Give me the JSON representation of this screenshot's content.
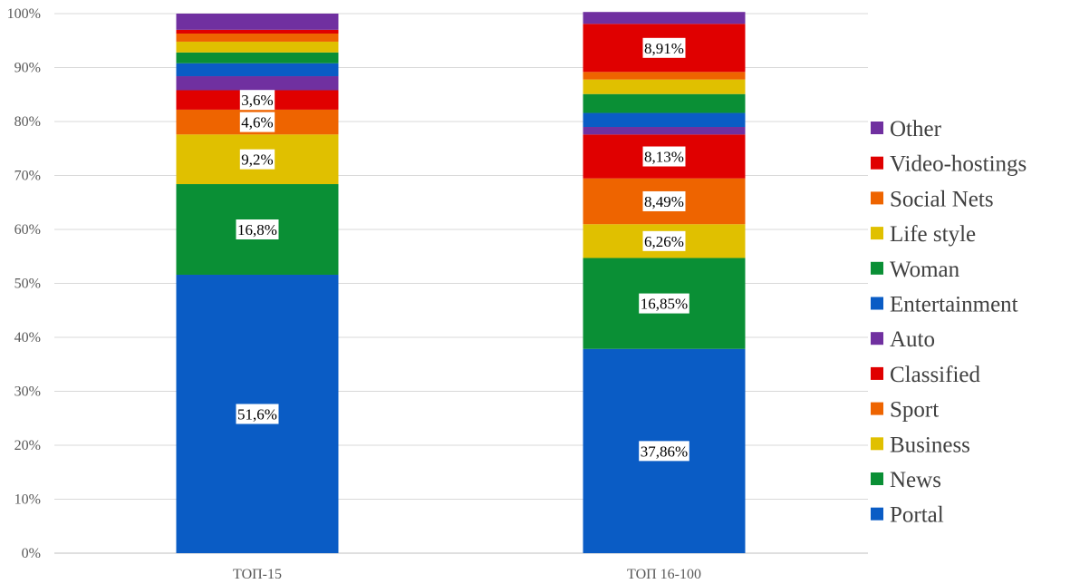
{
  "chart_data": {
    "type": "bar",
    "stacked": true,
    "percent_stacked": true,
    "categories": [
      "ТОП-15",
      "ТОП 16-100"
    ],
    "ylim": [
      0,
      100
    ],
    "yticks": [
      "0%",
      "10%",
      "20%",
      "30%",
      "40%",
      "50%",
      "60%",
      "70%",
      "80%",
      "90%",
      "100%"
    ],
    "grid": true,
    "legend_position": "right",
    "series": [
      {
        "name": "Portal",
        "color": "#0a5cc5",
        "values": [
          51.6,
          37.86
        ],
        "labels": [
          "51,6%",
          "37,86%"
        ]
      },
      {
        "name": "News",
        "color": "#0a8f35",
        "values": [
          16.8,
          16.85
        ],
        "labels": [
          "16,8%",
          "16,85%"
        ]
      },
      {
        "name": "Business",
        "color": "#e0c000",
        "values": [
          9.2,
          6.26
        ],
        "labels": [
          "9,2%",
          "6,26%"
        ]
      },
      {
        "name": "Sport",
        "color": "#ee6400",
        "values": [
          4.6,
          8.49
        ],
        "labels": [
          "4,6%",
          "8,49%"
        ]
      },
      {
        "name": "Classified",
        "color": "#e00000",
        "values": [
          3.6,
          8.13
        ],
        "labels": [
          "3,6%",
          "8,13%"
        ]
      },
      {
        "name": "Auto",
        "color": "#7030a0",
        "values": [
          2.6,
          1.4
        ],
        "labels": [
          "",
          ""
        ]
      },
      {
        "name": "Entertainment",
        "color": "#0a5cc5",
        "values": [
          2.4,
          2.6
        ],
        "labels": [
          "",
          ""
        ]
      },
      {
        "name": "Woman",
        "color": "#0a8f35",
        "values": [
          2.0,
          3.5
        ],
        "labels": [
          "",
          ""
        ]
      },
      {
        "name": "Life style",
        "color": "#e0c000",
        "values": [
          2.0,
          2.7
        ],
        "labels": [
          "",
          ""
        ]
      },
      {
        "name": "Social Nets",
        "color": "#ee6400",
        "values": [
          1.5,
          1.4
        ],
        "labels": [
          "",
          ""
        ]
      },
      {
        "name": "Video-hostings",
        "color": "#e00000",
        "values": [
          0.7,
          8.91
        ],
        "labels": [
          "",
          "8,91%"
        ]
      },
      {
        "name": "Other",
        "color": "#7030a0",
        "values": [
          3.0,
          2.2
        ],
        "labels": [
          "",
          ""
        ]
      }
    ]
  }
}
